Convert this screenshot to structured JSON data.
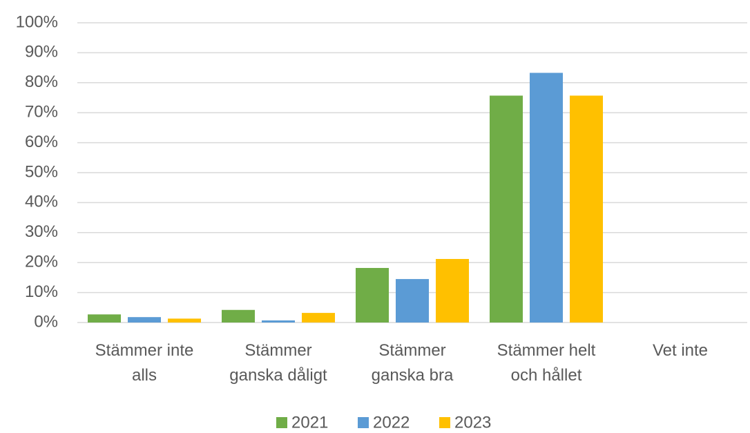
{
  "chart_data": {
    "type": "bar",
    "categories": [
      "Stämmer inte\nalls",
      "Stämmer\nganska dåligt",
      "Stämmer\nganska bra",
      "Stämmer helt\noch hållet",
      "Vet inte"
    ],
    "series": [
      {
        "name": "2021",
        "color": "#70ad47",
        "values": [
          2.7,
          4.2,
          18.2,
          75.7,
          0
        ]
      },
      {
        "name": "2022",
        "color": "#5b9bd5",
        "values": [
          1.8,
          0.7,
          14.5,
          83.3,
          0
        ]
      },
      {
        "name": "2023",
        "color": "#ffc000",
        "values": [
          1.3,
          3.2,
          21.2,
          75.7,
          0
        ]
      }
    ],
    "ylim": [
      0,
      100
    ],
    "yticks": [
      {
        "value": 0,
        "label": "0%"
      },
      {
        "value": 10,
        "label": "10%"
      },
      {
        "value": 20,
        "label": "20%"
      },
      {
        "value": 30,
        "label": "30%"
      },
      {
        "value": 40,
        "label": "40%"
      },
      {
        "value": 50,
        "label": "50%"
      },
      {
        "value": 60,
        "label": "60%"
      },
      {
        "value": 70,
        "label": "70%"
      },
      {
        "value": 80,
        "label": "80%"
      },
      {
        "value": 90,
        "label": "90%"
      },
      {
        "value": 100,
        "label": "100%"
      }
    ],
    "grid": true,
    "legend": "bottom"
  }
}
